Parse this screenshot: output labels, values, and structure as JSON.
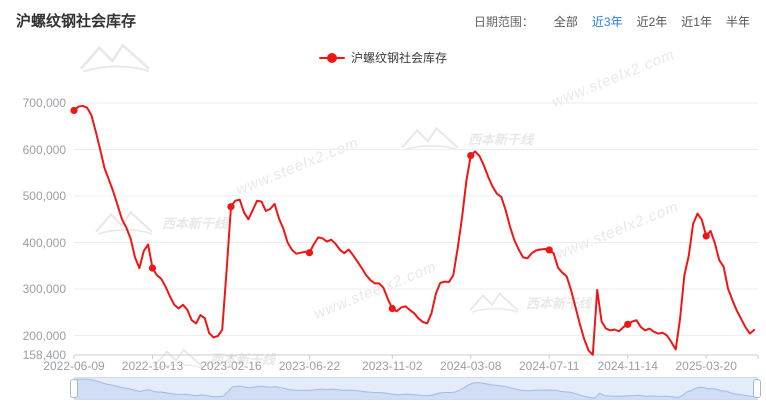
{
  "header": {
    "title": "沪螺纹钢社会库存",
    "date_range_label": "日期范围：",
    "ranges": [
      {
        "label": "全部",
        "active": false
      },
      {
        "label": "近3年",
        "active": true
      },
      {
        "label": "近2年",
        "active": false
      },
      {
        "label": "近1年",
        "active": false
      },
      {
        "label": "半年",
        "active": false
      }
    ],
    "active_range_color": "#2b7fd6"
  },
  "legend": {
    "label": "沪螺纹钢社会库存",
    "color": "#f01616"
  },
  "watermark": {
    "site_text": "www.steelx2.com",
    "brand_text": "西本新干线"
  },
  "data_zoom": {
    "track_color": "#e4ebf9",
    "area_color": "#cbdaf3",
    "line_color": "#9fbce9"
  },
  "chart_data": {
    "type": "line",
    "title": "沪螺纹钢社会库存",
    "series_name": "沪螺纹钢社会库存",
    "line_color": "#f01616",
    "grid": true,
    "legend_position": "top",
    "ylim": [
      158400,
      700000
    ],
    "y_ticks": [
      700000,
      600000,
      500000,
      400000,
      300000,
      200000,
      158400
    ],
    "y_tick_labels": [
      "700,000",
      "600,000",
      "500,000",
      "400,000",
      "300,000",
      "200,000",
      "158,400"
    ],
    "x_tick_labels": [
      "2022-06-09",
      "2022-10-13",
      "2023-02-16",
      "2023-06-22",
      "2023-11-02",
      "2024-03-08",
      "2024-07-11",
      "2024-11-14",
      "2025-03-20"
    ],
    "x_tick_indices": [
      0,
      18,
      36,
      54,
      73,
      91,
      109,
      127,
      145
    ],
    "marker_indices": [
      0,
      18,
      36,
      54,
      73,
      91,
      109,
      127,
      145
    ],
    "x": [
      "2022-06-09",
      "2022-06-16",
      "2022-06-23",
      "2022-06-30",
      "2022-07-07",
      "2022-07-14",
      "2022-07-21",
      "2022-07-28",
      "2022-08-04",
      "2022-08-11",
      "2022-08-18",
      "2022-08-25",
      "2022-09-01",
      "2022-09-08",
      "2022-09-15",
      "2022-09-22",
      "2022-09-29",
      "2022-10-06",
      "2022-10-13",
      "2022-10-20",
      "2022-10-27",
      "2022-11-03",
      "2022-11-10",
      "2022-11-17",
      "2022-11-24",
      "2022-12-01",
      "2022-12-08",
      "2022-12-15",
      "2022-12-22",
      "2022-12-29",
      "2023-01-05",
      "2023-01-12",
      "2023-01-19",
      "2023-01-26",
      "2023-02-02",
      "2023-02-09",
      "2023-02-16",
      "2023-02-23",
      "2023-03-02",
      "2023-03-09",
      "2023-03-16",
      "2023-03-23",
      "2023-03-30",
      "2023-04-06",
      "2023-04-13",
      "2023-04-20",
      "2023-04-27",
      "2023-05-04",
      "2023-05-11",
      "2023-05-18",
      "2023-05-25",
      "2023-06-01",
      "2023-06-08",
      "2023-06-15",
      "2023-06-22",
      "2023-06-29",
      "2023-07-06",
      "2023-07-13",
      "2023-07-20",
      "2023-07-27",
      "2023-08-03",
      "2023-08-10",
      "2023-08-17",
      "2023-08-24",
      "2023-08-31",
      "2023-09-07",
      "2023-09-14",
      "2023-09-21",
      "2023-09-28",
      "2023-10-05",
      "2023-10-12",
      "2023-10-19",
      "2023-10-26",
      "2023-11-02",
      "2023-11-09",
      "2023-11-16",
      "2023-11-23",
      "2023-11-30",
      "2023-12-07",
      "2023-12-14",
      "2023-12-21",
      "2023-12-28",
      "2024-01-04",
      "2024-01-11",
      "2024-01-18",
      "2024-01-25",
      "2024-02-01",
      "2024-02-08",
      "2024-02-15",
      "2024-02-22",
      "2024-02-29",
      "2024-03-08",
      "2024-03-14",
      "2024-03-21",
      "2024-03-28",
      "2024-04-04",
      "2024-04-11",
      "2024-04-18",
      "2024-04-25",
      "2024-05-02",
      "2024-05-09",
      "2024-05-16",
      "2024-05-23",
      "2024-05-30",
      "2024-06-06",
      "2024-06-13",
      "2024-06-20",
      "2024-06-27",
      "2024-07-04",
      "2024-07-11",
      "2024-07-18",
      "2024-07-25",
      "2024-08-01",
      "2024-08-08",
      "2024-08-15",
      "2024-08-22",
      "2024-08-29",
      "2024-09-05",
      "2024-09-12",
      "2024-09-19",
      "2024-09-26",
      "2024-10-03",
      "2024-10-10",
      "2024-10-17",
      "2024-10-24",
      "2024-10-31",
      "2024-11-07",
      "2024-11-14",
      "2024-11-21",
      "2024-11-28",
      "2024-12-05",
      "2024-12-12",
      "2024-12-19",
      "2024-12-26",
      "2025-01-02",
      "2025-01-09",
      "2025-01-16",
      "2025-01-23",
      "2025-01-30",
      "2025-02-06",
      "2025-02-13",
      "2025-02-20",
      "2025-02-27",
      "2025-03-06",
      "2025-03-13",
      "2025-03-20",
      "2025-03-27",
      "2025-04-03",
      "2025-04-10",
      "2025-04-17",
      "2025-04-24",
      "2025-05-01",
      "2025-05-08",
      "2025-05-15",
      "2025-05-22",
      "2025-05-29",
      "2025-06-05"
    ],
    "values": [
      684000,
      692000,
      694000,
      690000,
      674000,
      638000,
      600000,
      560000,
      535000,
      510000,
      480000,
      450000,
      432000,
      408000,
      368000,
      345000,
      382000,
      396000,
      345000,
      330000,
      322000,
      305000,
      284000,
      266000,
      258000,
      266000,
      255000,
      233000,
      226000,
      244000,
      237000,
      205000,
      196000,
      199000,
      212000,
      340000,
      477000,
      490000,
      492000,
      465000,
      450000,
      470000,
      490000,
      488000,
      468000,
      472000,
      483000,
      452000,
      430000,
      400000,
      384000,
      376000,
      378000,
      380000,
      378000,
      396000,
      411000,
      409000,
      402000,
      406000,
      397000,
      384000,
      377000,
      385000,
      373000,
      359000,
      345000,
      330000,
      319000,
      312000,
      312000,
      302000,
      278000,
      258000,
      252000,
      260000,
      263000,
      255000,
      248000,
      237000,
      229000,
      226000,
      248000,
      290000,
      313000,
      316000,
      315000,
      330000,
      388000,
      453000,
      533000,
      587000,
      596000,
      586000,
      566000,
      541000,
      520000,
      505000,
      498000,
      470000,
      434000,
      405000,
      385000,
      368000,
      366000,
      377000,
      383000,
      385000,
      386000,
      384000,
      377000,
      346000,
      335000,
      327000,
      298000,
      262000,
      225000,
      193000,
      168000,
      158400,
      298000,
      230000,
      215000,
      211000,
      213000,
      209000,
      218000,
      224000,
      230000,
      233000,
      218000,
      211000,
      215000,
      208000,
      204000,
      206000,
      200000,
      186000,
      170000,
      235000,
      330000,
      372000,
      440000,
      462000,
      449000,
      414000,
      425000,
      398000,
      362000,
      348000,
      301000,
      276000,
      254000,
      236000,
      218000,
      204000,
      212000
    ]
  }
}
